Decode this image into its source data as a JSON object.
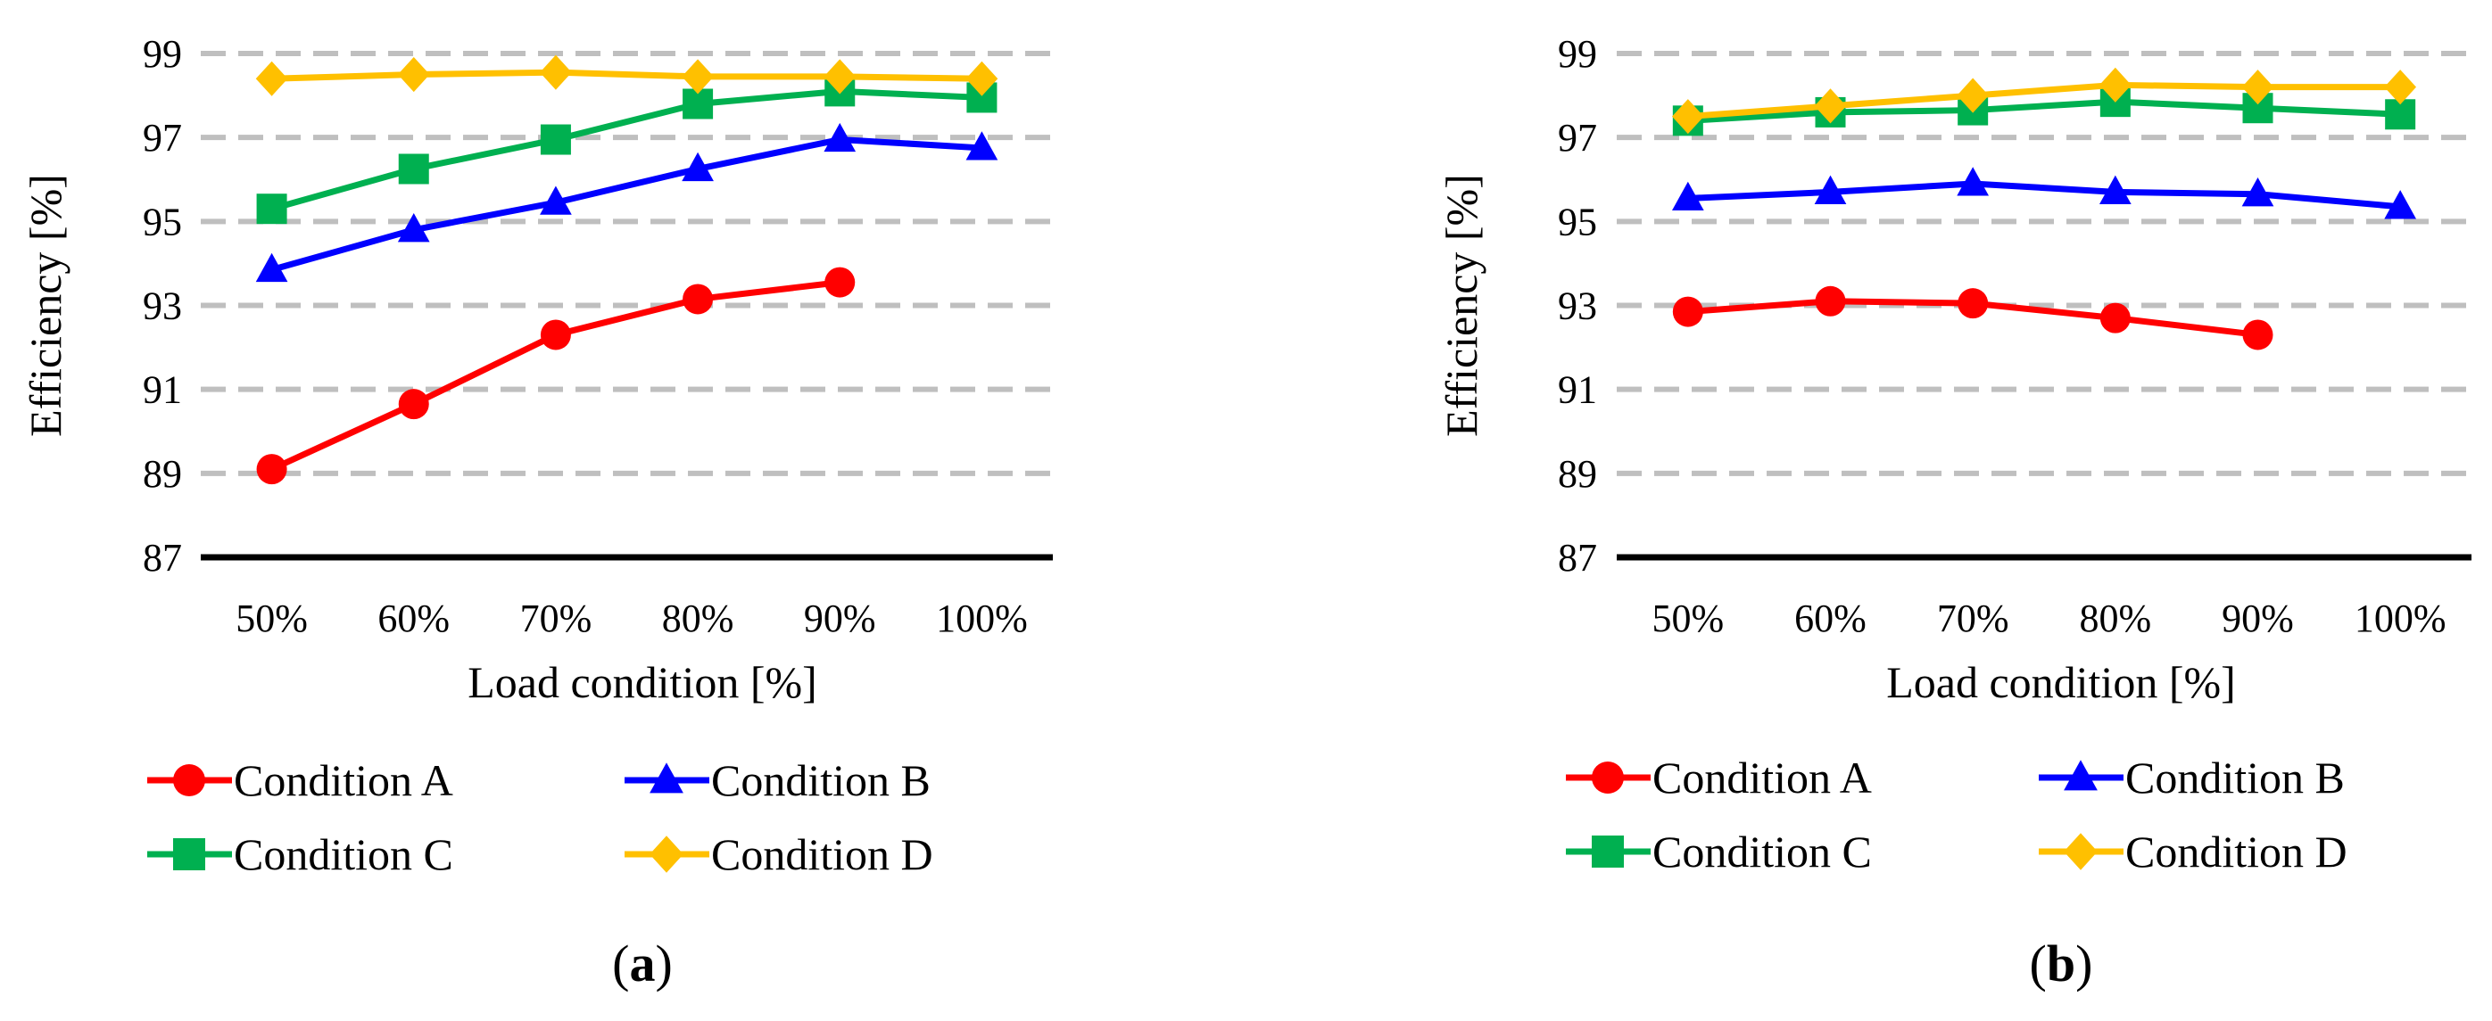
{
  "figure": {
    "background": "#ffffff"
  },
  "chart_data": [
    {
      "type": "line",
      "panel_label": "(a)",
      "panel_label_parts": [
        "(",
        "a",
        ")"
      ],
      "xlabel": "Load condition [%]",
      "ylabel": "Efficiency [%]",
      "categories": [
        "50%",
        "60%",
        "70%",
        "80%",
        "90%",
        "100%"
      ],
      "yticks": [
        "87",
        "89",
        "91",
        "93",
        "95",
        "97",
        "99"
      ],
      "ylim": [
        87,
        99
      ],
      "grid": "horizontal dashed",
      "legend_position": "bottom",
      "series": [
        {
          "name": "Condition A",
          "color": "#ff0000",
          "marker": "circle",
          "values": [
            89.1,
            90.65,
            92.3,
            93.15,
            93.55,
            null
          ]
        },
        {
          "name": "Condition B",
          "color": "#0000ff",
          "marker": "triangle",
          "values": [
            93.85,
            94.8,
            95.45,
            96.25,
            96.95,
            96.75
          ]
        },
        {
          "name": "Condition C",
          "color": "#00b050",
          "marker": "square",
          "values": [
            95.3,
            96.25,
            96.95,
            97.8,
            98.1,
            97.95
          ]
        },
        {
          "name": "Condition D",
          "color": "#ffc000",
          "marker": "diamond",
          "values": [
            98.4,
            98.5,
            98.55,
            98.45,
            98.45,
            98.4
          ]
        }
      ]
    },
    {
      "type": "line",
      "panel_label": "(b)",
      "panel_label_parts": [
        "(",
        "b",
        ")"
      ],
      "xlabel": "Load condition [%]",
      "ylabel": "Efficiency [%]",
      "categories": [
        "50%",
        "60%",
        "70%",
        "80%",
        "90%",
        "100%"
      ],
      "yticks": [
        "87",
        "89",
        "91",
        "93",
        "95",
        "97",
        "99"
      ],
      "ylim": [
        87,
        99
      ],
      "grid": "horizontal dashed",
      "legend_position": "bottom",
      "series": [
        {
          "name": "Condition A",
          "color": "#ff0000",
          "marker": "circle",
          "values": [
            92.85,
            93.1,
            93.05,
            92.7,
            92.3,
            null
          ]
        },
        {
          "name": "Condition B",
          "color": "#0000ff",
          "marker": "triangle",
          "values": [
            95.55,
            95.7,
            95.9,
            95.7,
            95.65,
            95.35
          ]
        },
        {
          "name": "Condition C",
          "color": "#00b050",
          "marker": "square",
          "values": [
            97.4,
            97.6,
            97.65,
            97.85,
            97.7,
            97.55
          ]
        },
        {
          "name": "Condition D",
          "color": "#ffc000",
          "marker": "diamond",
          "values": [
            97.5,
            97.75,
            98.0,
            98.25,
            98.2,
            98.2
          ]
        }
      ]
    }
  ]
}
